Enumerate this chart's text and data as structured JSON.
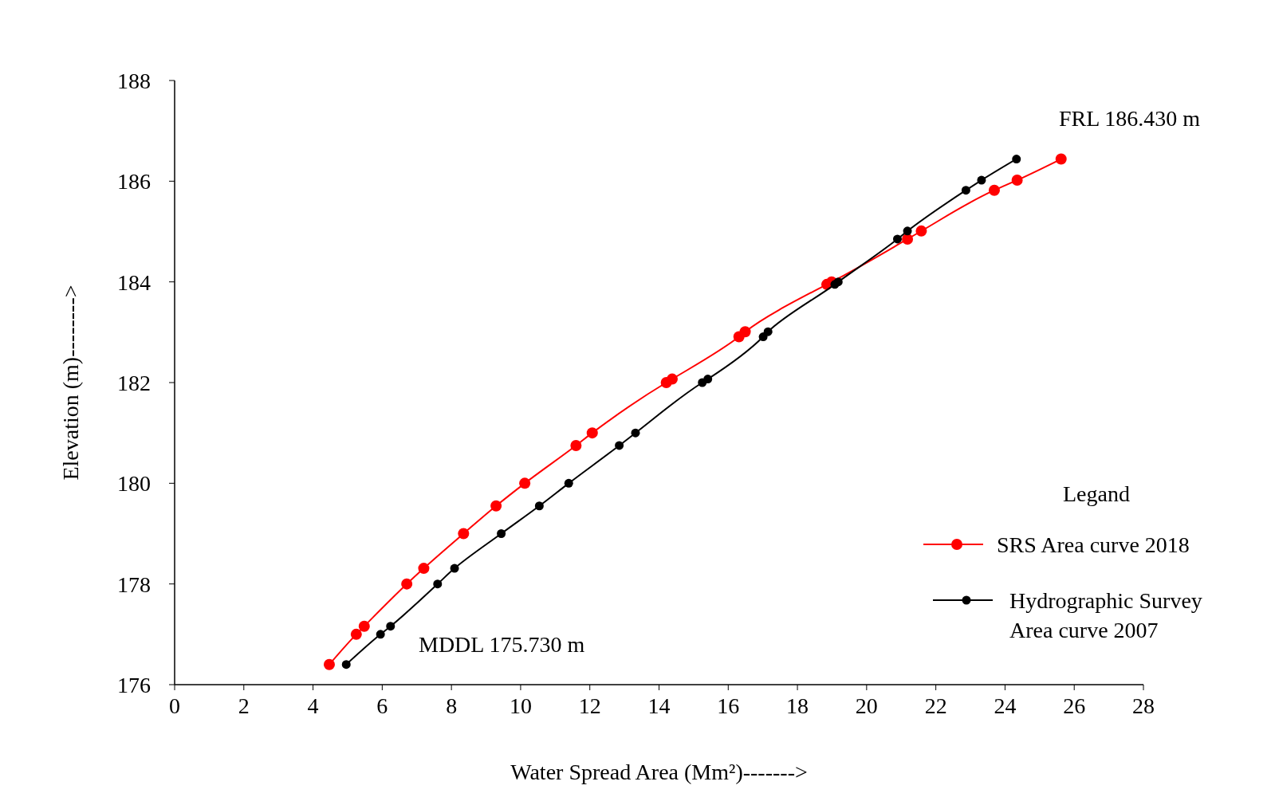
{
  "chart_data": {
    "type": "line",
    "xlabel": "Water Spread Area (Mm²)------->",
    "ylabel": "Elevation (m)-------->",
    "legend_title": "Legand",
    "legend": "right",
    "marker": "circle",
    "line_style": "solid",
    "grid": false,
    "xlim": [
      0,
      28
    ],
    "xticks": [
      0,
      2,
      4,
      6,
      8,
      10,
      12,
      14,
      16,
      18,
      20,
      22,
      24,
      26,
      28
    ],
    "ylim": [
      176,
      188
    ],
    "yticks": [
      176,
      178,
      180,
      182,
      184,
      186,
      188
    ],
    "annotations": [
      "FRL 186.430 m",
      "MDDL 175.730 m"
    ],
    "series": [
      {
        "name": "SRS Area curve 2018",
        "color": "#ff0000",
        "x": [
          4.47,
          5.25,
          5.48,
          6.71,
          7.2,
          8.35,
          9.29,
          10.12,
          11.6,
          12.07,
          14.21,
          14.38,
          16.31,
          16.49,
          18.85,
          18.99,
          21.18,
          21.58,
          23.69,
          24.35,
          25.62
        ],
        "values": [
          176.4,
          177.0,
          177.16,
          178.0,
          178.31,
          179.0,
          179.55,
          180.0,
          180.75,
          181.0,
          182.0,
          182.07,
          182.91,
          183.01,
          183.95,
          184.0,
          184.85,
          185.01,
          185.82,
          186.02,
          186.44
        ]
      },
      {
        "name": "Hydrographic  Survey Area curve 2007",
        "color": "#000000",
        "x": [
          4.96,
          5.95,
          6.24,
          7.6,
          8.09,
          9.44,
          10.54,
          11.39,
          12.85,
          13.32,
          15.25,
          15.41,
          17.01,
          17.15,
          19.08,
          19.18,
          20.89,
          21.18,
          22.87,
          23.32,
          24.33
        ],
        "values": [
          176.4,
          177.0,
          177.16,
          178.0,
          178.31,
          179.0,
          179.55,
          180.0,
          180.75,
          181.0,
          182.0,
          182.07,
          182.91,
          183.01,
          183.95,
          184.0,
          184.85,
          185.01,
          185.82,
          186.02,
          186.44
        ]
      }
    ]
  }
}
